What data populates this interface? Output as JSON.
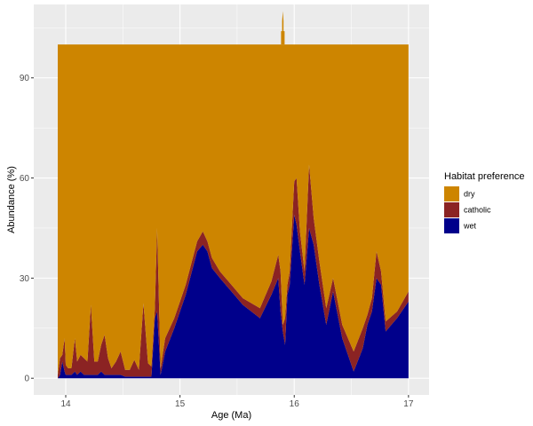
{
  "chart_data": {
    "type": "area",
    "stacked": true,
    "xlabel": "Age (Ma)",
    "ylabel": "Abundance (%)",
    "xlim": [
      13.72,
      17.18
    ],
    "ylim": [
      -5,
      112
    ],
    "xticks": [
      14,
      15,
      16,
      17
    ],
    "yticks": [
      0,
      30,
      60,
      90
    ],
    "grid": true,
    "legend": {
      "title": "Habitat preference",
      "position": "right",
      "entries": [
        "dry",
        "catholic",
        "wet"
      ]
    },
    "colors": {
      "dry": "#CD8500",
      "catholic": "#8B2323",
      "wet": "#00008B"
    },
    "x": [
      13.93,
      13.95,
      13.97,
      13.99,
      14.0,
      14.02,
      14.05,
      14.08,
      14.1,
      14.13,
      14.16,
      14.19,
      14.22,
      14.25,
      14.28,
      14.31,
      14.34,
      14.37,
      14.4,
      14.44,
      14.48,
      14.52,
      14.56,
      14.6,
      14.64,
      14.68,
      14.72,
      14.75,
      14.78,
      14.8,
      14.83,
      14.87,
      14.95,
      15.05,
      15.15,
      15.2,
      15.24,
      15.28,
      15.35,
      15.45,
      15.55,
      15.7,
      15.8,
      15.86,
      15.88,
      15.9,
      15.92,
      15.94,
      15.96,
      16.0,
      16.02,
      16.05,
      16.09,
      16.13,
      16.17,
      16.22,
      16.28,
      16.34,
      16.42,
      16.52,
      16.6,
      16.64,
      16.68,
      16.72,
      16.76,
      16.8,
      16.9,
      17.0
    ],
    "series": [
      {
        "name": "wet",
        "values": [
          0,
          1,
          5,
          2,
          1,
          1,
          1,
          2,
          1,
          2,
          1,
          1,
          1,
          1,
          1,
          2,
          1,
          1,
          1,
          1,
          1,
          0.5,
          0.5,
          0.5,
          0.5,
          0.5,
          0.5,
          0.5,
          18,
          20,
          1,
          8,
          15,
          25,
          38,
          40,
          38,
          33,
          30,
          26,
          22,
          18,
          25,
          30,
          20,
          14,
          10,
          25,
          28,
          49,
          46,
          38,
          28,
          45,
          40,
          28,
          16,
          26,
          12,
          2,
          9,
          16,
          20,
          30,
          28,
          14,
          18,
          23
        ]
      },
      {
        "name": "catholic",
        "values": [
          1,
          5,
          2,
          10,
          3,
          2,
          2,
          10,
          4,
          5,
          5,
          4,
          21,
          4,
          4,
          8,
          12,
          5,
          2,
          4,
          7,
          2,
          2,
          5,
          2,
          22,
          4,
          3,
          3,
          25,
          2,
          4,
          3,
          3,
          3,
          4,
          3,
          3,
          2,
          2,
          2,
          3,
          4,
          7,
          12,
          2,
          8,
          3,
          4,
          10,
          14,
          6,
          4,
          19,
          8,
          7,
          5,
          4,
          4,
          6,
          6,
          3,
          4,
          8,
          4,
          3,
          2,
          3
        ]
      },
      {
        "name": "dry",
        "values": [
          99,
          94,
          93,
          88,
          96,
          97,
          97,
          88,
          95,
          93,
          94,
          95,
          78,
          95,
          95,
          90,
          87,
          94,
          97,
          95,
          92,
          97.5,
          97.5,
          94.5,
          97.5,
          77.5,
          95.5,
          96.5,
          79,
          55,
          97,
          88,
          82,
          72,
          59,
          56,
          59,
          64,
          68,
          72,
          76,
          79,
          71,
          63,
          68,
          84,
          82,
          72,
          68,
          41,
          40,
          56,
          68,
          36,
          52,
          65,
          79,
          70,
          84,
          92,
          85,
          81,
          76,
          62,
          68,
          83,
          80,
          74
        ]
      }
    ],
    "spike": {
      "x": 15.9,
      "y_top": 110,
      "series": "dry"
    }
  }
}
